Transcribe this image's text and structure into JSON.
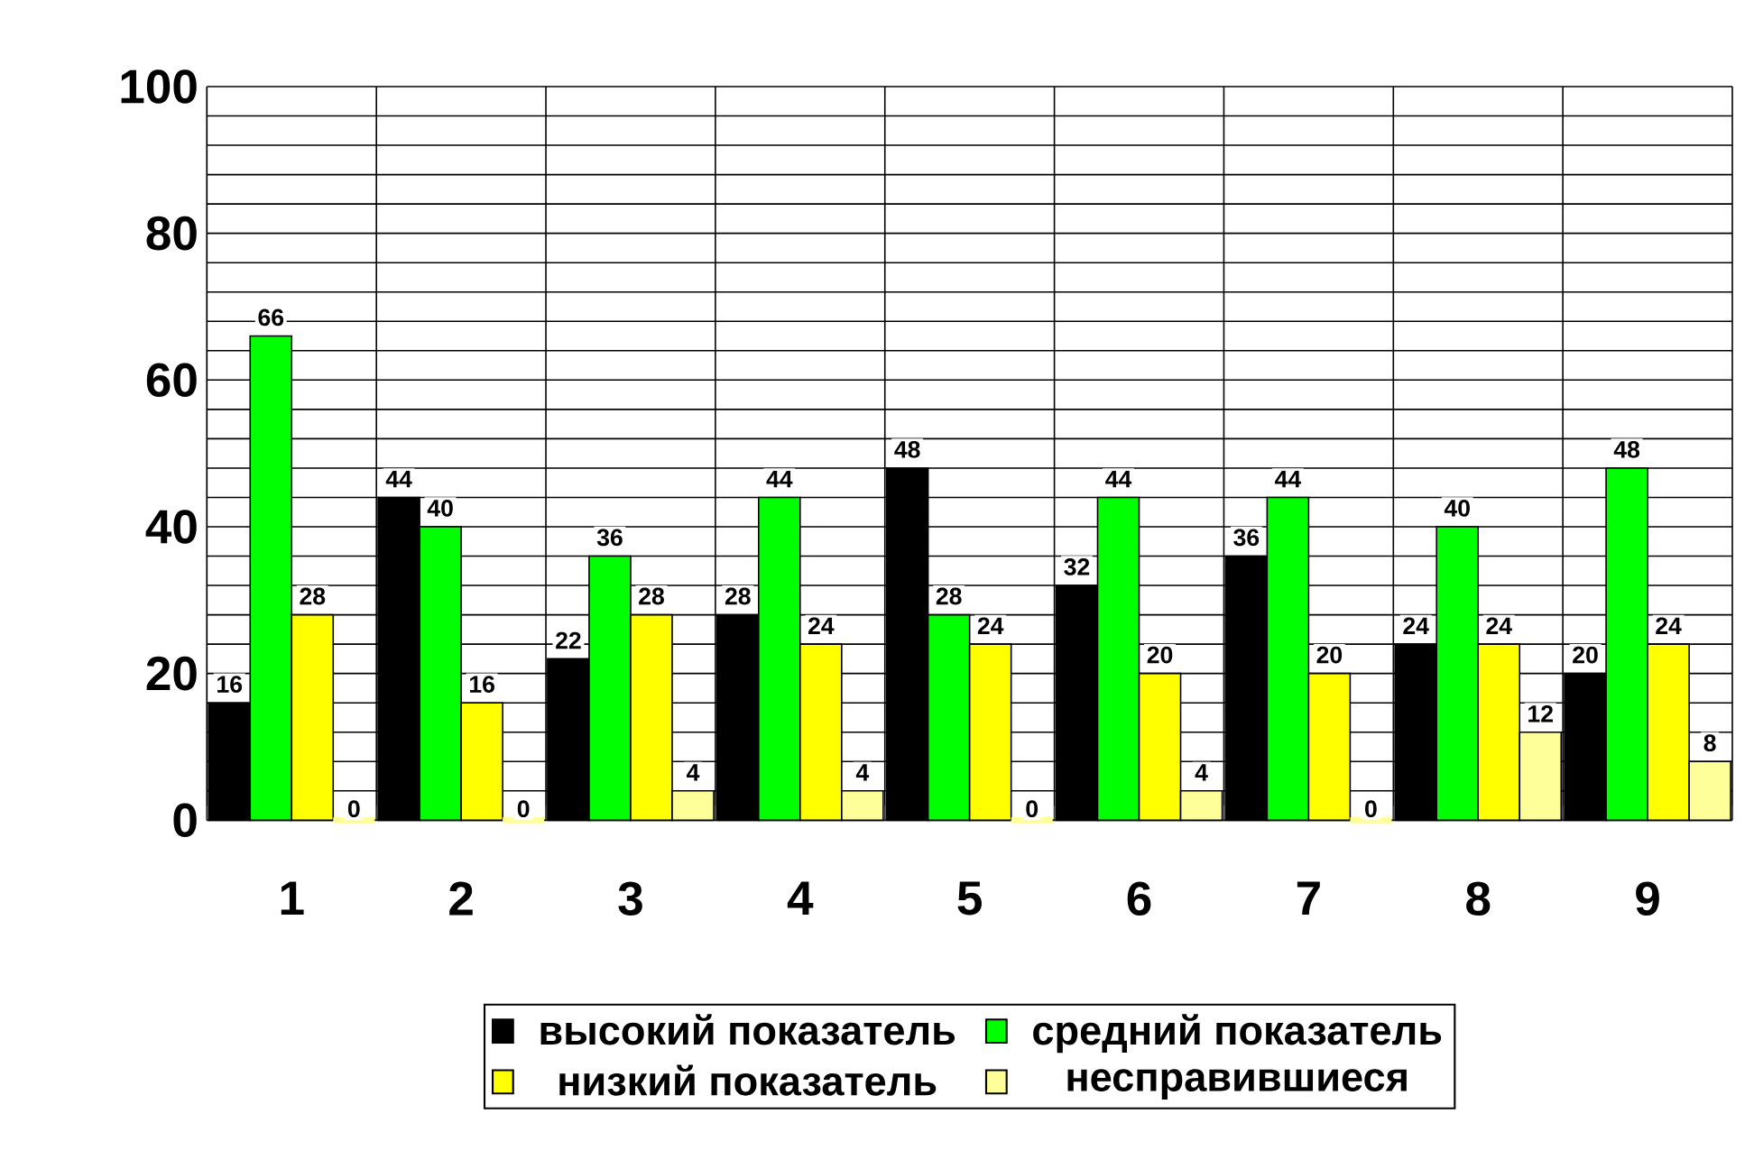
{
  "chart_data": {
    "type": "bar",
    "categories": [
      "1",
      "2",
      "3",
      "4",
      "5",
      "6",
      "7",
      "8",
      "9"
    ],
    "series": [
      {
        "name": "высокий показатель",
        "color": "#000000",
        "values": [
          16,
          44,
          22,
          28,
          48,
          32,
          36,
          24,
          20
        ]
      },
      {
        "name": "средний показатель",
        "color": "#00ff00",
        "values": [
          66,
          40,
          36,
          44,
          28,
          44,
          44,
          40,
          48
        ]
      },
      {
        "name": "низкий показатель",
        "color": "#ffff00",
        "values": [
          28,
          16,
          28,
          24,
          24,
          20,
          20,
          24,
          24
        ]
      },
      {
        "name": "несправившиеся",
        "color": "#ffff99",
        "values": [
          0,
          0,
          4,
          4,
          0,
          4,
          0,
          12,
          8
        ]
      }
    ],
    "ylim": [
      0,
      100
    ],
    "yticks": [
      0,
      {
        "value": 4,
        "label": null
      },
      {
        "value": 8,
        "label": null
      },
      {
        "value": 12,
        "label": null
      },
      {
        "value": 16,
        "label": null
      },
      20,
      {
        "value": 24,
        "label": null
      },
      {
        "value": 28,
        "label": null
      },
      {
        "value": 32,
        "label": null
      },
      {
        "value": 36,
        "label": null
      },
      40,
      {
        "value": 44,
        "label": null
      },
      {
        "value": 48,
        "label": null
      },
      {
        "value": 52,
        "label": null
      },
      {
        "value": 56,
        "label": null
      },
      60,
      {
        "value": 64,
        "label": null
      },
      {
        "value": 68,
        "label": null
      },
      {
        "value": 72,
        "label": null
      },
      {
        "value": 76,
        "label": null
      },
      80,
      {
        "value": 84,
        "label": null
      },
      {
        "value": 88,
        "label": null
      },
      {
        "value": 92,
        "label": null
      },
      {
        "value": 96,
        "label": null
      },
      100
    ],
    "grid": true,
    "data_labels": true,
    "legend": "bottom"
  }
}
